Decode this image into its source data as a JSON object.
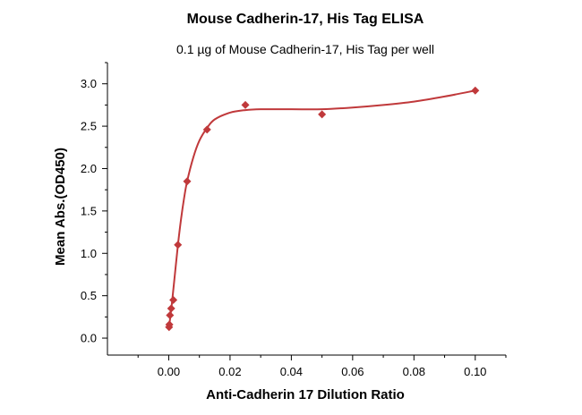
{
  "chart_data": {
    "type": "scatter",
    "title": "Mouse Cadherin-17, His Tag ELISA",
    "subtitle": "0.1 µg of Mouse Cadherin-17, His Tag per well",
    "xlabel": "Anti-Cadherin 17 Dilution Ratio",
    "ylabel": "Mean Abs.(OD450)",
    "xlim": [
      -0.02,
      0.11
    ],
    "ylim": [
      -0.2,
      3.25
    ],
    "x_ticks": [
      0.0,
      0.02,
      0.04,
      0.06,
      0.08,
      0.1
    ],
    "x_tick_labels": [
      "0.00",
      "0.02",
      "0.04",
      "0.06",
      "0.08",
      "0.10"
    ],
    "y_ticks": [
      0.0,
      0.5,
      1.0,
      1.5,
      2.0,
      2.5,
      3.0
    ],
    "y_tick_labels": [
      "0.0",
      "0.5",
      "1.0",
      "1.5",
      "2.0",
      "2.5",
      "3.0"
    ],
    "grid": false,
    "legend": "none",
    "marker_color": "#C0393B",
    "line_color": "#C0393B",
    "points": [
      {
        "x": 0.0001,
        "y": 0.13
      },
      {
        "x": 0.0002,
        "y": 0.16
      },
      {
        "x": 0.0004,
        "y": 0.27
      },
      {
        "x": 0.0008,
        "y": 0.35
      },
      {
        "x": 0.0015,
        "y": 0.45
      },
      {
        "x": 0.003,
        "y": 1.1
      },
      {
        "x": 0.006,
        "y": 1.85
      },
      {
        "x": 0.0125,
        "y": 2.46
      },
      {
        "x": 0.025,
        "y": 2.75
      },
      {
        "x": 0.05,
        "y": 2.64
      },
      {
        "x": 0.1,
        "y": 2.92
      }
    ],
    "fit_curve": [
      {
        "x": 0.0,
        "y": 0.1
      },
      {
        "x": 0.001,
        "y": 0.4
      },
      {
        "x": 0.002,
        "y": 0.75
      },
      {
        "x": 0.003,
        "y": 1.1
      },
      {
        "x": 0.004,
        "y": 1.4
      },
      {
        "x": 0.005,
        "y": 1.65
      },
      {
        "x": 0.006,
        "y": 1.85
      },
      {
        "x": 0.008,
        "y": 2.13
      },
      {
        "x": 0.01,
        "y": 2.33
      },
      {
        "x": 0.0125,
        "y": 2.48
      },
      {
        "x": 0.015,
        "y": 2.58
      },
      {
        "x": 0.02,
        "y": 2.66
      },
      {
        "x": 0.025,
        "y": 2.69
      },
      {
        "x": 0.03,
        "y": 2.7
      },
      {
        "x": 0.04,
        "y": 2.7
      },
      {
        "x": 0.05,
        "y": 2.7
      },
      {
        "x": 0.06,
        "y": 2.72
      },
      {
        "x": 0.07,
        "y": 2.75
      },
      {
        "x": 0.08,
        "y": 2.79
      },
      {
        "x": 0.09,
        "y": 2.85
      },
      {
        "x": 0.1,
        "y": 2.92
      }
    ]
  }
}
